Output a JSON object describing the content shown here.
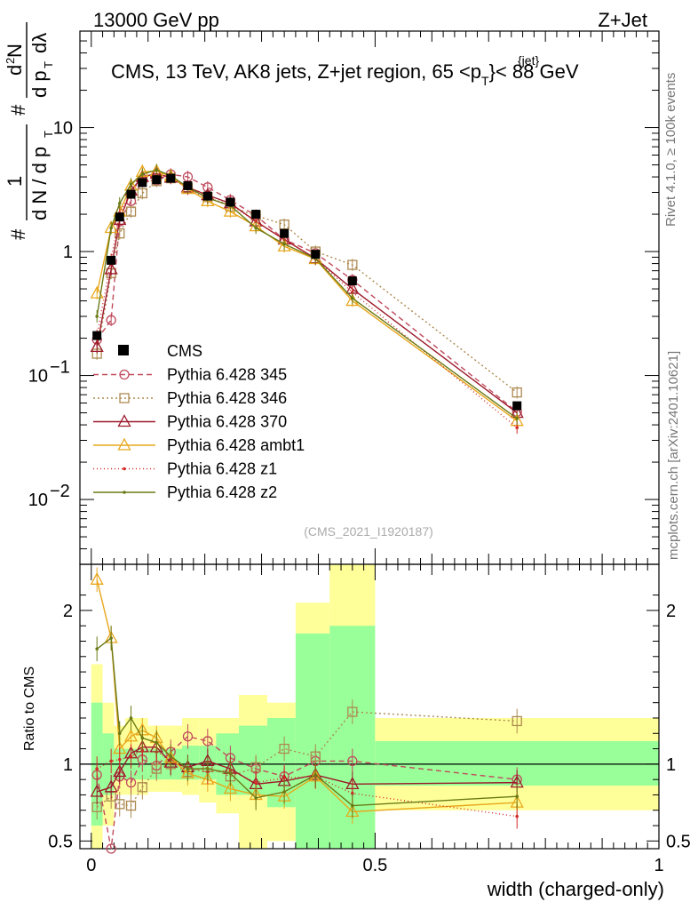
{
  "header": {
    "left": "13000 GeV pp",
    "right": "Z+Jet",
    "title_prefix": "CMS, 13 TeV, AK8 jets, Z+jet region, 65 <p",
    "title_sup": "{jet}",
    "title_sub": "T",
    "title_suffix": "}< 88 GeV",
    "watermark": "(CMS_2021_I1920187)"
  },
  "side_text": {
    "rivet": "Rivet 4.1.0, ≥ 100k events",
    "mcplots": "mcplots.cern.ch [arXiv:2401.10621]"
  },
  "chart_data": {
    "type": "line",
    "x_label": "width (charged-only)",
    "top": {
      "yscale": "log",
      "ylim": [
        0.003,
        60
      ],
      "xlim": [
        -0.02,
        1.0
      ],
      "y_tick_labels": [
        "10",
        "1",
        "10",
        "10"
      ],
      "y_tick_exps": [
        "",
        "",
        "−1",
        "−2"
      ]
    },
    "bottom": {
      "ylabel": "Ratio to CMS",
      "ylim": [
        0.45,
        2.3
      ],
      "xlim": [
        -0.02,
        1.0
      ],
      "y_tick_labels": [
        "0.5",
        "1",
        "2"
      ],
      "x_tick_labels": [
        "0",
        "0.5",
        "1"
      ]
    },
    "x": [
      0.01,
      0.035,
      0.05,
      0.07,
      0.09,
      0.115,
      0.14,
      0.17,
      0.205,
      0.245,
      0.29,
      0.34,
      0.395,
      0.46,
      0.75
    ],
    "cms": [
      0.21,
      0.85,
      1.9,
      2.9,
      3.6,
      3.8,
      3.9,
      3.4,
      2.8,
      2.5,
      2.0,
      1.4,
      0.95,
      0.58,
      0.057
    ],
    "bands": [
      {
        "x0": 0.0,
        "x1": 0.02,
        "g": [
          0.6,
          1.4
        ],
        "y": [
          0.4,
          1.65
        ]
      },
      {
        "x0": 0.02,
        "x1": 0.04,
        "g": [
          0.8,
          1.2
        ],
        "y": [
          0.6,
          1.4
        ]
      },
      {
        "x0": 0.04,
        "x1": 0.06,
        "g": [
          0.9,
          1.1
        ],
        "y": [
          0.8,
          1.25
        ]
      },
      {
        "x0": 0.06,
        "x1": 0.08,
        "g": [
          0.9,
          1.1
        ],
        "y": [
          0.8,
          1.3
        ]
      },
      {
        "x0": 0.08,
        "x1": 0.1,
        "g": [
          0.9,
          1.1
        ],
        "y": [
          0.8,
          1.3
        ]
      },
      {
        "x0": 0.1,
        "x1": 0.13,
        "g": [
          0.9,
          1.1
        ],
        "y": [
          0.82,
          1.25
        ]
      },
      {
        "x0": 0.13,
        "x1": 0.16,
        "g": [
          0.9,
          1.1
        ],
        "y": [
          0.82,
          1.25
        ]
      },
      {
        "x0": 0.16,
        "x1": 0.19,
        "g": [
          0.9,
          1.12
        ],
        "y": [
          0.8,
          1.3
        ]
      },
      {
        "x0": 0.19,
        "x1": 0.22,
        "g": [
          0.9,
          1.12
        ],
        "y": [
          0.75,
          1.3
        ]
      },
      {
        "x0": 0.22,
        "x1": 0.26,
        "g": [
          0.8,
          1.2
        ],
        "y": [
          0.68,
          1.3
        ]
      },
      {
        "x0": 0.26,
        "x1": 0.31,
        "g": [
          0.8,
          1.25
        ],
        "y": [
          0.4,
          1.45
        ]
      },
      {
        "x0": 0.31,
        "x1": 0.36,
        "g": [
          0.72,
          1.3
        ],
        "y": [
          0.5,
          1.4
        ]
      },
      {
        "x0": 0.36,
        "x1": 0.42,
        "g": [
          0.45,
          1.85
        ],
        "y": [
          0.45,
          2.05
        ]
      },
      {
        "x0": 0.42,
        "x1": 0.5,
        "g": [
          0.45,
          1.9
        ],
        "y": [
          0.45,
          2.3
        ]
      },
      {
        "x0": 0.5,
        "x1": 1.0,
        "g": [
          0.86,
          1.15
        ],
        "y": [
          0.7,
          1.3
        ]
      }
    ],
    "series": [
      {
        "name": "Pythia 6.428 345",
        "color": "#c04a5c",
        "dash": "6,4",
        "marker": "circle",
        "values": [
          0.195,
          0.28,
          1.75,
          2.55,
          3.7,
          3.75,
          4.2,
          4.0,
          3.3,
          2.6,
          1.95,
          1.25,
          0.97,
          0.59,
          0.051
        ],
        "ratio": [
          0.93,
          0.33,
          0.92,
          0.88,
          1.03,
          0.99,
          1.08,
          1.18,
          1.15,
          1.04,
          0.97,
          0.92,
          1.02,
          1.02,
          0.9
        ]
      },
      {
        "name": "Pythia 6.428 346",
        "color": "#ad8950",
        "dash": "2,3",
        "marker": "square",
        "values": [
          0.15,
          0.67,
          1.4,
          2.1,
          2.95,
          3.7,
          3.9,
          3.25,
          2.75,
          2.3,
          1.95,
          1.65,
          1.0,
          0.78,
          0.073
        ],
        "ratio": [
          0.72,
          0.79,
          0.74,
          0.73,
          0.85,
          0.97,
          1.0,
          0.95,
          0.98,
          0.92,
          0.98,
          1.1,
          1.05,
          1.34,
          1.28
        ]
      },
      {
        "name": "Pythia 6.428 370",
        "color": "#9b1a2a",
        "dash": "",
        "marker": "triangle",
        "values": [
          0.17,
          0.72,
          1.8,
          3.1,
          4.0,
          4.25,
          3.95,
          3.3,
          2.85,
          2.45,
          1.75,
          1.25,
          0.88,
          0.5,
          0.05
        ],
        "ratio": [
          0.82,
          0.85,
          0.95,
          1.07,
          1.11,
          1.11,
          1.01,
          0.98,
          1.02,
          0.97,
          0.87,
          0.89,
          0.93,
          0.87,
          0.88
        ]
      },
      {
        "name": "Pythia 6.428 ambt1",
        "color": "#e8a71c",
        "dash": "",
        "marker": "triangle",
        "values": [
          0.46,
          1.55,
          2.1,
          3.4,
          4.4,
          4.45,
          4.05,
          3.2,
          2.55,
          2.1,
          1.6,
          1.1,
          0.87,
          0.4,
          0.043
        ],
        "ratio": [
          2.2,
          1.82,
          1.1,
          1.18,
          1.22,
          1.17,
          1.04,
          0.94,
          0.9,
          0.84,
          0.8,
          0.79,
          0.92,
          0.69,
          0.75
        ]
      },
      {
        "name": "Pythia 6.428 z1",
        "color": "#d42a2a",
        "dash": "1,3",
        "marker": "dot",
        "values": [
          0.21,
          0.86,
          2.05,
          3.0,
          3.9,
          4.1,
          4.0,
          3.2,
          2.7,
          2.4,
          1.75,
          1.25,
          0.87,
          0.47,
          0.038
        ],
        "ratio": [
          0.97,
          1.02,
          1.03,
          1.05,
          1.09,
          1.08,
          1.03,
          0.97,
          0.95,
          0.96,
          0.88,
          0.91,
          0.92,
          0.81,
          0.66
        ]
      },
      {
        "name": "Pythia 6.428 z2",
        "color": "#6b7a16",
        "dash": "",
        "marker": "dot",
        "values": [
          0.3,
          1.55,
          2.45,
          3.5,
          4.2,
          4.55,
          4.1,
          3.3,
          2.7,
          2.35,
          1.55,
          1.15,
          0.88,
          0.42,
          0.045
        ],
        "ratio": [
          1.75,
          1.82,
          1.2,
          1.3,
          1.17,
          1.14,
          1.05,
          0.97,
          0.97,
          0.94,
          0.78,
          0.82,
          0.93,
          0.73,
          0.79
        ]
      }
    ],
    "legend": {
      "cms_label": "CMS"
    }
  }
}
